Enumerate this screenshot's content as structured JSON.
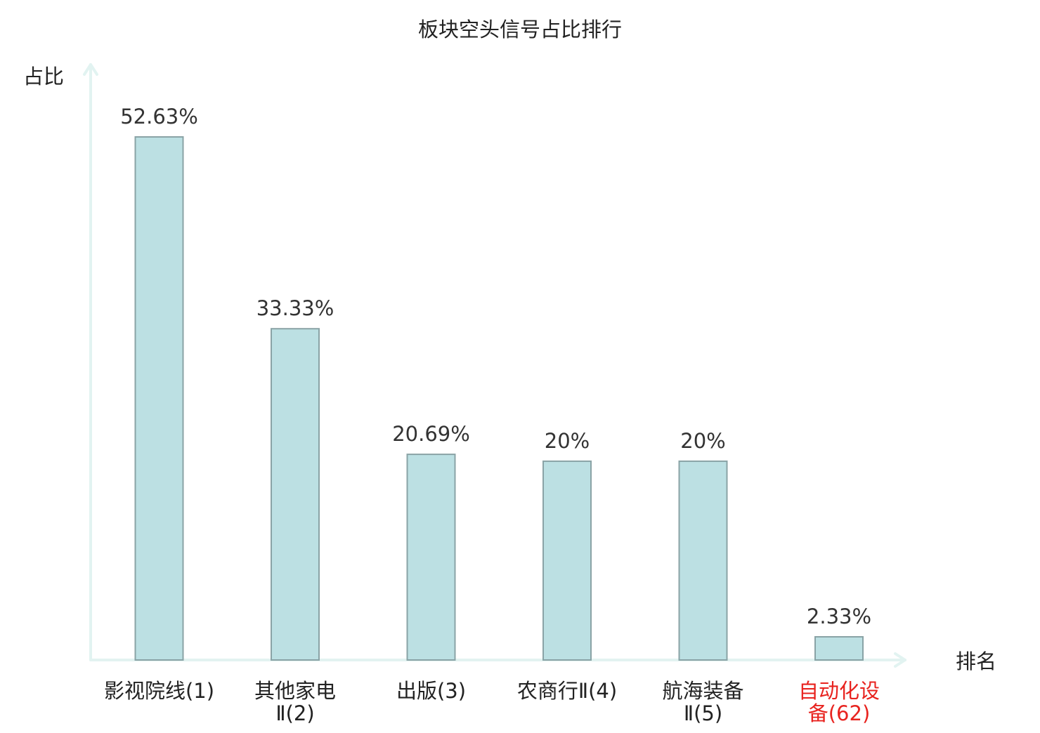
{
  "chart_data": {
    "type": "bar",
    "title": "板块空头信号占比排行",
    "ylabel": "占比",
    "xlabel": "排名",
    "categories": [
      {
        "lines": [
          "影视院线(1)"
        ],
        "highlight": false
      },
      {
        "lines": [
          "其他家电",
          "Ⅱ(2)"
        ],
        "highlight": false
      },
      {
        "lines": [
          "出版(3)"
        ],
        "highlight": false
      },
      {
        "lines": [
          "农商行Ⅱ(4)"
        ],
        "highlight": false
      },
      {
        "lines": [
          "航海装备",
          "Ⅱ(5)"
        ],
        "highlight": false
      },
      {
        "lines": [
          "自动化设",
          "备(62)"
        ],
        "highlight": true
      }
    ],
    "values": [
      52.63,
      33.33,
      20.69,
      20,
      20,
      2.33
    ],
    "value_labels": [
      "52.63%",
      "33.33%",
      "20.69%",
      "20%",
      "20%",
      "2.33%"
    ],
    "ylim": [
      0,
      52.63
    ],
    "grid": false,
    "colors": {
      "bar_fill": "#bce0e3",
      "bar_stroke": "#8aa3a6",
      "axis": "#e2f3f1",
      "text": "#333333",
      "highlight_text": "#e8231f"
    }
  }
}
